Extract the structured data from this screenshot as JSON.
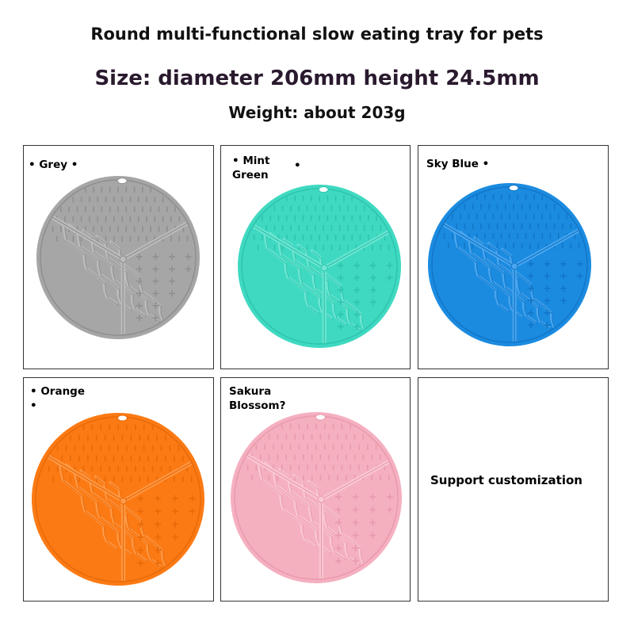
{
  "header": {
    "title": "Round multi-functional slow eating tray for pets",
    "size": "Size: diameter 206mm height 24.5mm",
    "weight": "Weight: about 203g"
  },
  "variants": [
    {
      "line1": "• Grey •",
      "line2": "",
      "color": "#a6a6a6",
      "dark": "#8f8f8f",
      "light": "#bdbdbd"
    },
    {
      "line1": "• Mint",
      "line2": "Green",
      "color": "#3fd9c1",
      "dark": "#2ec4ad",
      "light": "#6fe6d3"
    },
    {
      "line1": "Sky Blue •",
      "line2": "",
      "color": "#1b8be0",
      "dark": "#1276c7",
      "light": "#4aa6ee"
    },
    {
      "line1": "• Orange",
      "line2": "•",
      "color": "#fb7a14",
      "dark": "#e86a08",
      "light": "#ff9a48"
    },
    {
      "line1": "Sakura",
      "line2": "Blossom?",
      "color": "#f5b0c0",
      "dark": "#e99aad",
      "light": "#f9c9d4"
    }
  ],
  "custom_cell": {
    "text": "Support customization"
  }
}
